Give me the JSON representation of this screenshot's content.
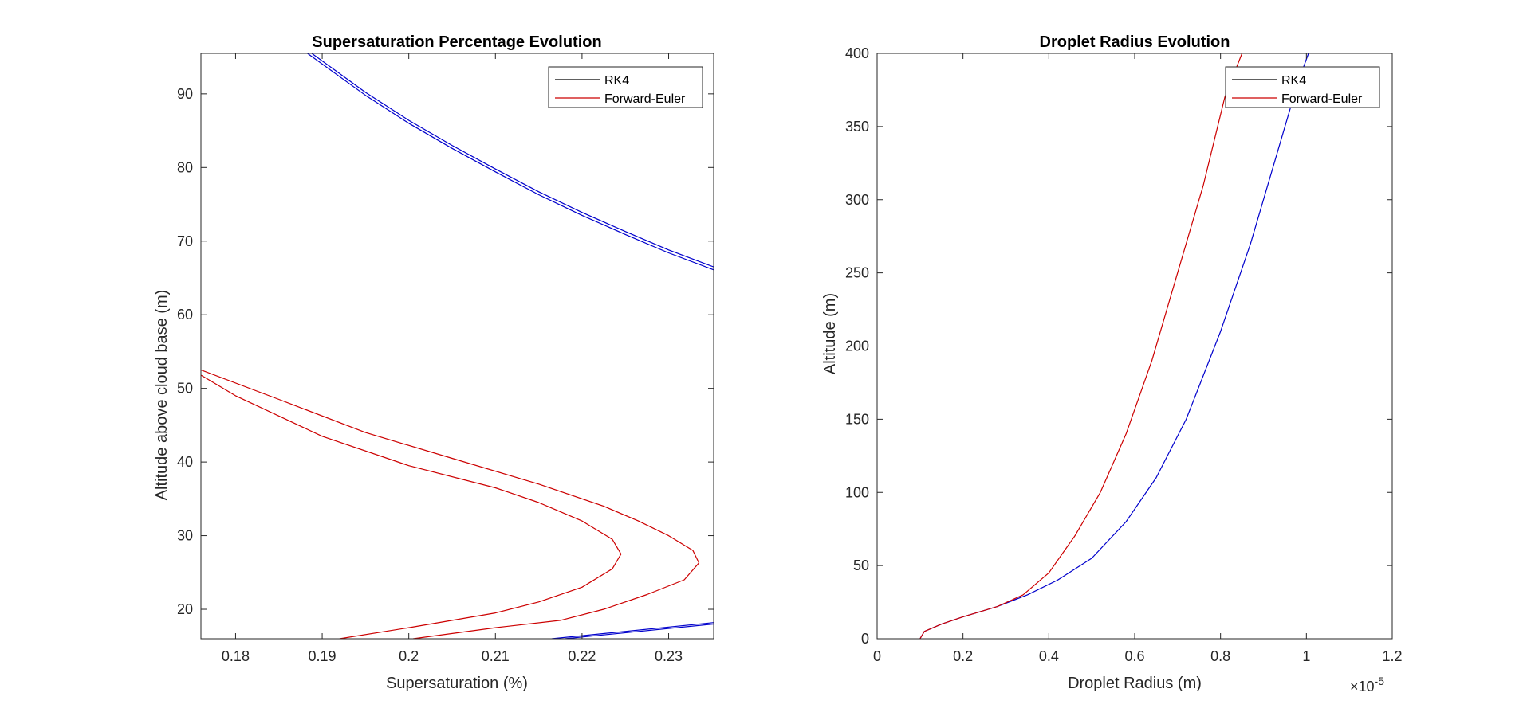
{
  "chart_data": [
    {
      "type": "line",
      "title": "Supersaturation Percentage Evolution",
      "xlabel": "Supersaturation (%)",
      "ylabel": "Altitude above cloud base (m)",
      "xlim": [
        0.176,
        0.2352
      ],
      "ylim": [
        16,
        95.5
      ],
      "xticks": [
        0.18,
        0.19,
        0.2,
        0.21,
        0.22,
        0.23
      ],
      "xtick_labels": [
        "0.18",
        "0.19",
        "0.2",
        "0.21",
        "0.22",
        "0.23"
      ],
      "yticks": [
        20,
        30,
        40,
        50,
        60,
        70,
        80,
        90
      ],
      "ytick_labels": [
        "20",
        "30",
        "40",
        "50",
        "60",
        "70",
        "80",
        "90"
      ],
      "legend_position": "top-right",
      "legend": [
        {
          "label": "RK4",
          "color": "#000000"
        },
        {
          "label": "Forward-Euler",
          "color": "#cc0000"
        }
      ],
      "series": [
        {
          "color": "#0000cc",
          "x": [
            0.1883,
            0.195,
            0.2,
            0.205,
            0.21,
            0.215,
            0.22,
            0.225,
            0.23,
            0.2352
          ],
          "y": [
            95.5,
            89.8,
            86.0,
            82.6,
            79.4,
            76.3,
            73.5,
            70.9,
            68.4,
            66.1
          ]
        },
        {
          "color": "#0000cc",
          "x": [
            0.1888,
            0.195,
            0.2,
            0.205,
            0.21,
            0.215,
            0.22,
            0.225,
            0.23,
            0.2352
          ],
          "y": [
            95.5,
            90.2,
            86.4,
            83.0,
            79.8,
            76.7,
            73.9,
            71.3,
            68.8,
            66.5
          ]
        },
        {
          "color": "#0000cc",
          "x": [
            0.2165,
            0.2352
          ],
          "y": [
            16,
            18.2
          ]
        },
        {
          "color": "#0000cc",
          "x": [
            0.218,
            0.2352
          ],
          "y": [
            16,
            18.0
          ]
        },
        {
          "color": "#cc0000",
          "x": [
            0.192,
            0.2,
            0.21,
            0.215,
            0.22,
            0.2235,
            0.2245,
            0.2235,
            0.22,
            0.215,
            0.21,
            0.2,
            0.19,
            0.18,
            0.176
          ],
          "y": [
            16,
            17.5,
            19.5,
            21.0,
            23.0,
            25.5,
            27.5,
            29.5,
            32.0,
            34.5,
            36.5,
            39.5,
            43.5,
            49.0,
            51.8
          ]
        },
        {
          "color": "#cc0000",
          "x": [
            0.2005,
            0.21,
            0.2175,
            0.2225,
            0.2275,
            0.2318,
            0.2335,
            0.2328,
            0.23,
            0.2265,
            0.2225,
            0.215,
            0.205,
            0.195,
            0.185,
            0.176
          ],
          "y": [
            16,
            17.5,
            18.5,
            20.0,
            22.0,
            24.0,
            26.3,
            28.0,
            30.0,
            32.0,
            34.0,
            37.0,
            40.5,
            44.0,
            48.5,
            52.5
          ]
        }
      ]
    },
    {
      "type": "line",
      "title": "Droplet Radius Evolution",
      "xlabel": "Droplet Radius (m)",
      "ylabel": "Altitude (m)",
      "x_exponent": "×10",
      "x_exponent_power": "-5",
      "xlim": [
        0,
        1.2
      ],
      "ylim": [
        0,
        400
      ],
      "xticks": [
        0,
        0.2,
        0.4,
        0.6,
        0.8,
        1,
        1.2
      ],
      "xtick_labels": [
        "0",
        "0.2",
        "0.4",
        "0.6",
        "0.8",
        "1",
        "1.2"
      ],
      "yticks": [
        0,
        50,
        100,
        150,
        200,
        250,
        300,
        350,
        400
      ],
      "ytick_labels": [
        "0",
        "50",
        "100",
        "150",
        "200",
        "250",
        "300",
        "350",
        "400"
      ],
      "legend_position": "top-right",
      "legend": [
        {
          "label": "RK4",
          "color": "#000000"
        },
        {
          "label": "Forward-Euler",
          "color": "#cc0000"
        }
      ],
      "series": [
        {
          "color": "#0000cc",
          "x": [
            0.1,
            0.11,
            0.15,
            0.2,
            0.28,
            0.35,
            0.42,
            0.5,
            0.58,
            0.65,
            0.72,
            0.8,
            0.87,
            0.93,
            0.98,
            1.005
          ],
          "y": [
            0,
            5,
            10,
            15,
            22,
            30,
            40,
            55,
            80,
            110,
            150,
            210,
            270,
            330,
            380,
            400
          ]
        },
        {
          "color": "#cc0000",
          "x": [
            0.1,
            0.11,
            0.15,
            0.2,
            0.28,
            0.34,
            0.4,
            0.46,
            0.52,
            0.58,
            0.64,
            0.7,
            0.76,
            0.81,
            0.85
          ],
          "y": [
            0,
            5,
            10,
            15,
            22,
            30,
            45,
            70,
            100,
            140,
            190,
            250,
            310,
            370,
            400
          ]
        }
      ]
    }
  ]
}
